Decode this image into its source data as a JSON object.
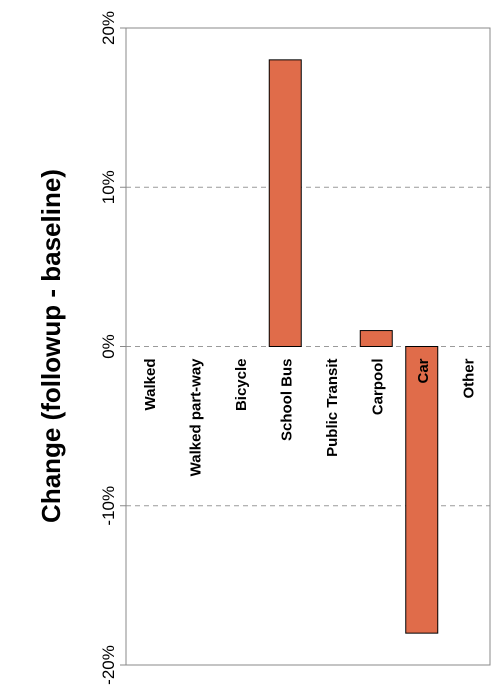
{
  "chart_data": {
    "type": "bar",
    "orientation": "rotated-90",
    "title": "",
    "ylabel": "Change (followup - baseline)",
    "xlabel": "",
    "categories": [
      "Walked",
      "Walked part-way",
      "Bicycle",
      "School Bus",
      "Public Transit",
      "Carpool",
      "Car",
      "Other"
    ],
    "values": [
      0,
      0,
      0,
      18,
      0,
      1,
      -18,
      0
    ],
    "ylim": [
      -20,
      20
    ],
    "yticks": [
      20,
      10,
      0,
      -10,
      -20
    ],
    "ytick_labels": [
      "20%",
      "10%",
      "0%",
      "-10%",
      "-20%"
    ],
    "grid": true,
    "bar_color": "#E06C4A",
    "legend": "none"
  }
}
